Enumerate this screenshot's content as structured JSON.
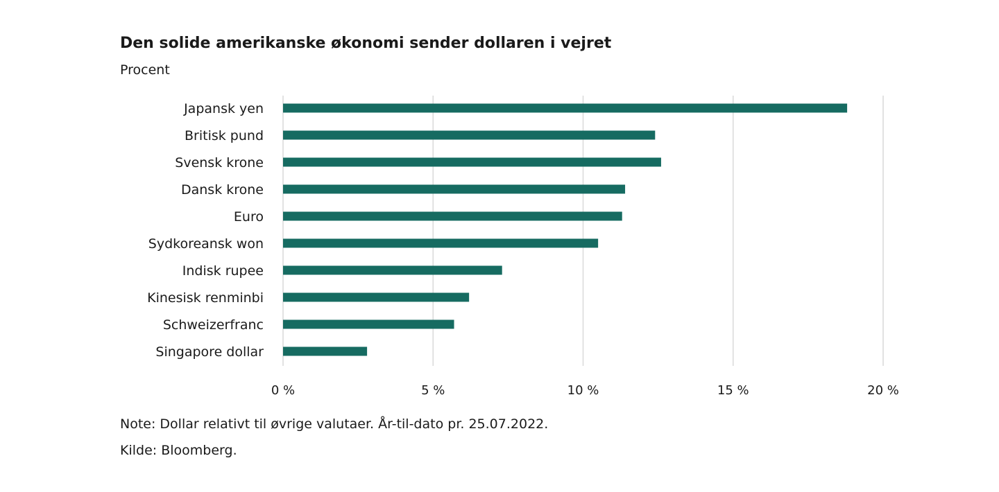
{
  "chart_data": {
    "type": "bar",
    "orientation": "horizontal",
    "title": "Den solide amerikanske økonomi sender dollaren i vejret",
    "subtitle": "Procent",
    "categories": [
      "Japansk yen",
      "Britisk pund",
      "Svensk krone",
      "Dansk krone",
      "Euro",
      "Sydkoreansk won",
      "Indisk rupee",
      "Kinesisk renminbi",
      "Schweizerfranc",
      "Singapore dollar"
    ],
    "values": [
      18.8,
      12.4,
      12.6,
      11.4,
      11.3,
      10.5,
      7.3,
      6.2,
      5.7,
      2.8
    ],
    "xlim": [
      0,
      20
    ],
    "xticks": [
      {
        "value": 0,
        "label": "0 %"
      },
      {
        "value": 5,
        "label": "5 %"
      },
      {
        "value": 10,
        "label": "10 %"
      },
      {
        "value": 15,
        "label": "15 %"
      },
      {
        "value": 20,
        "label": "20 %"
      }
    ],
    "grid": true,
    "bar_color": "#166b61",
    "grid_color": "#d9d9d9"
  },
  "notes": {
    "note": "Note: Dollar relativt til øvrige valutaer. År-til-dato pr. 25.07.2022.",
    "source": "Kilde: Bloomberg."
  }
}
